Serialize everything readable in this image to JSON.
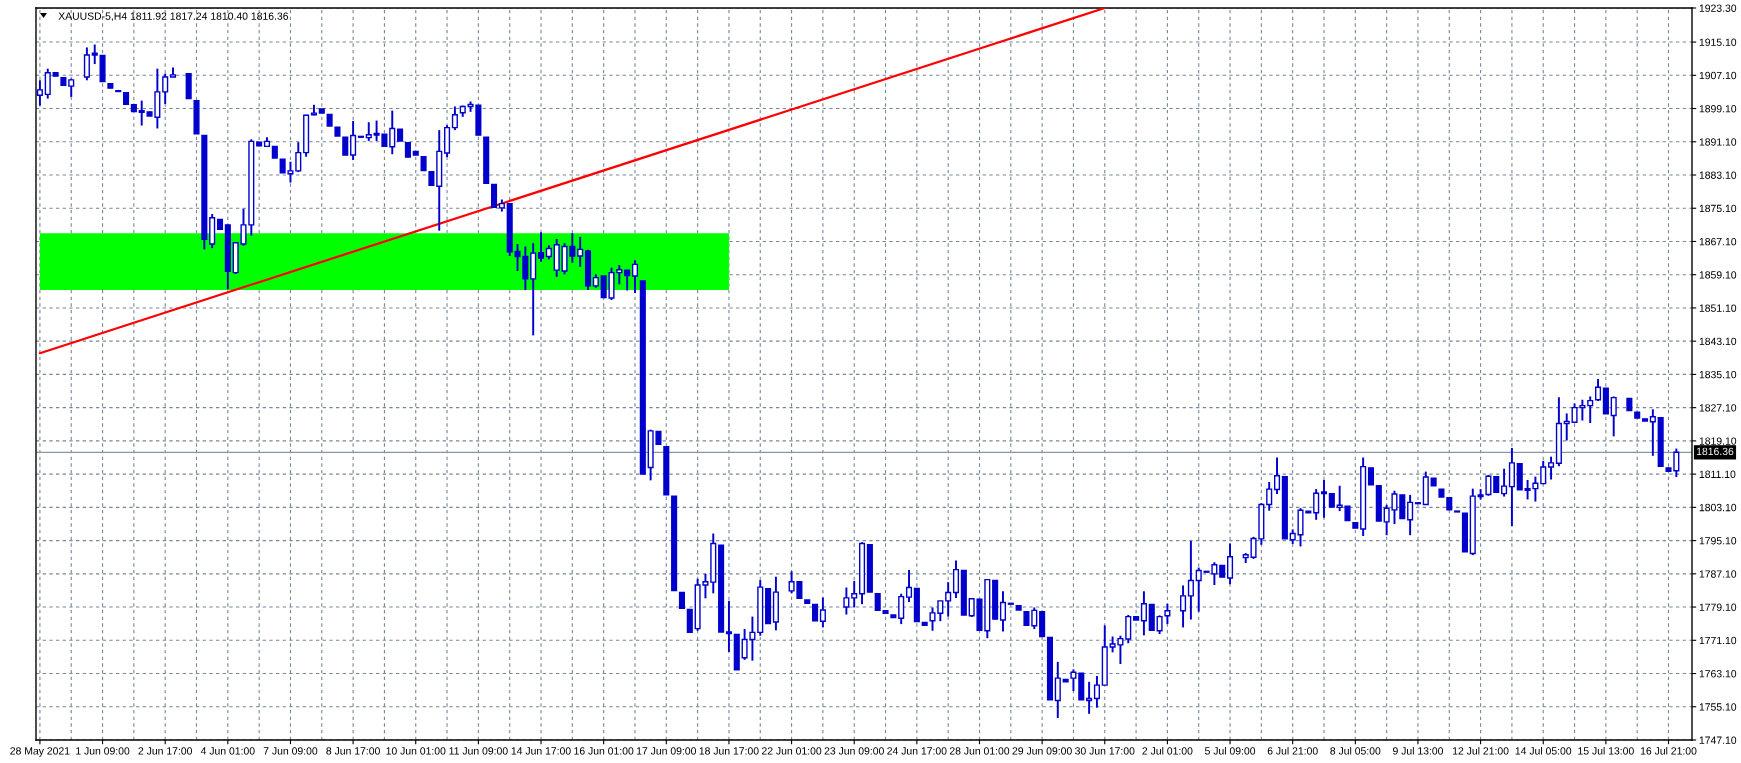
{
  "chart_data": {
    "type": "candlestick",
    "title": "XAUUSD-5,H4 1811.92 1817.24 1810.40 1816.36",
    "color": "#0000cd",
    "categories": [
      "28 May 2021",
      null,
      null,
      null,
      null,
      null,
      null,
      null,
      "1 Jun 09:00",
      null,
      null,
      null,
      null,
      null,
      null,
      null,
      "2 Jun 17:00",
      null,
      null,
      null,
      null,
      null,
      null,
      null,
      "4 Jun 01:00",
      null,
      null,
      null,
      null,
      null,
      null,
      null,
      "7 Jun 09:00",
      null,
      null,
      null,
      null,
      null,
      null,
      null,
      "8 Jun 17:00",
      null,
      null,
      null,
      null,
      null,
      null,
      null,
      "10 Jun 01:00",
      null,
      null,
      null,
      null,
      null,
      null,
      null,
      "11 Jun 09:00",
      null,
      null,
      null,
      null,
      null,
      null,
      null,
      "14 Jun 17:00",
      null,
      null,
      null,
      null,
      null,
      null,
      null,
      "16 Jun 01:00",
      null,
      null,
      null,
      null,
      null,
      null,
      null,
      "17 Jun 09:00",
      null,
      null,
      null,
      null,
      null,
      null,
      null,
      "18 Jun 17:00",
      null,
      null,
      null,
      null,
      null,
      null,
      null,
      "22 Jun 01:00",
      null,
      null,
      null,
      null,
      null,
      null,
      null,
      "23 Jun 09:00",
      null,
      null,
      null,
      null,
      null,
      null,
      null,
      "24 Jun 17:00",
      null,
      null,
      null,
      null,
      null,
      null,
      null,
      "28 Jun 01:00",
      null,
      null,
      null,
      null,
      null,
      null,
      null,
      "29 Jun 09:00",
      null,
      null,
      null,
      null,
      null,
      null,
      null,
      "30 Jun 17:00",
      null,
      null,
      null,
      null,
      null,
      null,
      null,
      "2 Jul 01:00",
      null,
      null,
      null,
      null,
      null,
      null,
      null,
      "5 Jul 09:00",
      null,
      null,
      null,
      null,
      null,
      null,
      null,
      "6 Jul 21:00",
      null,
      null,
      null,
      null,
      null,
      null,
      null,
      "8 Jul 05:00",
      null,
      null,
      null,
      null,
      null,
      null,
      null,
      "9 Jul 13:00",
      null,
      null,
      null,
      null,
      null,
      null,
      null,
      "12 Jul 21:00",
      null,
      null,
      null,
      null,
      null,
      null,
      null,
      "14 Jul 05:00",
      null,
      null,
      null,
      null,
      null,
      null,
      null,
      "15 Jul 13:00",
      null,
      null,
      null,
      null,
      null,
      null,
      null,
      "16 Jul 21:00",
      null
    ],
    "ohlc": [
      [
        1902.3,
        1905.9,
        1899.8,
        1903.6
      ],
      [
        1902.5,
        1908.7,
        1901.5,
        1907.7
      ],
      [
        1907.7,
        1907.7,
        1906.9,
        1906.9
      ],
      [
        1906.5,
        1906.5,
        1904.7,
        1904.7
      ],
      [
        1904.5,
        1906.3,
        1901.9,
        1906.0
      ],
      null,
      [
        1906.7,
        1913.8,
        1905.9,
        1912.0
      ],
      [
        1912.4,
        1914.5,
        1909.8,
        1912.0
      ],
      [
        1911.9,
        1911.9,
        1905.6,
        1905.6
      ],
      [
        1905.1,
        1905.1,
        1904.0,
        1904.0
      ],
      [
        1903.4,
        1903.4,
        1903.2,
        1903.2
      ],
      [
        1902.9,
        1902.9,
        1900.1,
        1900.1
      ],
      [
        1900.0,
        1900.0,
        1898.4,
        1898.4
      ],
      [
        1898.6,
        1901.0,
        1895.0,
        1898.2
      ],
      [
        1898.3,
        1898.3,
        1897.3,
        1897.3
      ],
      [
        1897.0,
        1908.7,
        1894.3,
        1903.1
      ],
      [
        1903.1,
        1907.5,
        1900.2,
        1906.7
      ],
      [
        1906.7,
        1909.0,
        1906.7,
        1907.2
      ],
      null,
      [
        1907.5,
        1907.5,
        1901.5,
        1901.5
      ],
      [
        1901.0,
        1901.0,
        1893.0,
        1893.0
      ],
      [
        1892.6,
        1892.6,
        1865.2,
        1867.6
      ],
      [
        1866.5,
        1873.7,
        1865.5,
        1872.8
      ],
      [
        1872.4,
        1872.4,
        1870.0,
        1870.0
      ],
      [
        1871.1,
        1871.1,
        1855.6,
        1859.9
      ],
      [
        1859.6,
        1866.8,
        1859.3,
        1866.8
      ],
      [
        1866.5,
        1875.0,
        1866.1,
        1871.1
      ],
      [
        1871.1,
        1891.7,
        1868.5,
        1891.2
      ],
      [
        1891.0,
        1891.0,
        1890.1,
        1890.1
      ],
      [
        1890.0,
        1892.2,
        1890.0,
        1891.2
      ],
      [
        1890.0,
        1890.0,
        1887.2,
        1887.2
      ],
      [
        1886.9,
        1886.9,
        1883.6,
        1883.6
      ],
      [
        1883.4,
        1886.3,
        1881.3,
        1884.1
      ],
      [
        1884.1,
        1891.0,
        1883.8,
        1888.5
      ],
      [
        1888.5,
        1897.6,
        1887.5,
        1897.5
      ],
      [
        1897.6,
        1900.0,
        1897.5,
        1898.0
      ],
      [
        1899.0,
        1899.0,
        1898.0,
        1898.0
      ],
      [
        1897.7,
        1897.7,
        1894.9,
        1894.9
      ],
      [
        1894.6,
        1894.6,
        1892.5,
        1892.5
      ],
      [
        1892.2,
        1892.2,
        1887.9,
        1887.9
      ],
      [
        1887.9,
        1896.1,
        1886.7,
        1892.6
      ],
      [
        1892.4,
        1892.4,
        1892.2,
        1892.2
      ],
      [
        1892.1,
        1895.8,
        1891.3,
        1892.8
      ],
      [
        1893.1,
        1896.2,
        1891.3,
        1892.7
      ],
      [
        1892.9,
        1892.9,
        1890.0,
        1890.0
      ],
      [
        1889.9,
        1898.6,
        1888.1,
        1894.3
      ],
      [
        1894.1,
        1894.1,
        1891.3,
        1891.3
      ],
      [
        1890.9,
        1890.9,
        1887.4,
        1887.4
      ],
      [
        1888.8,
        1888.8,
        1887.9,
        1887.9
      ],
      [
        1887.5,
        1887.5,
        1884.2,
        1884.2
      ],
      [
        1883.9,
        1883.9,
        1880.6,
        1880.6
      ],
      [
        1880.4,
        1893.9,
        1869.7,
        1888.8
      ],
      [
        1888.4,
        1895.1,
        1887.4,
        1894.5
      ],
      [
        1894.5,
        1899.6,
        1893.9,
        1897.6
      ],
      [
        1898.1,
        1899.8,
        1897.1,
        1899.6
      ],
      [
        1899.6,
        1900.8,
        1898.3,
        1900.1
      ],
      [
        1899.9,
        1899.9,
        1892.7,
        1892.7
      ],
      [
        1892.2,
        1892.2,
        1881.1,
        1881.1
      ],
      [
        1880.8,
        1880.8,
        1875.3,
        1875.3
      ],
      [
        1875.2,
        1877.2,
        1874.3,
        1876.2
      ],
      [
        1876.2,
        1876.2,
        1863.6,
        1864.6
      ],
      [
        1864.7,
        1866.5,
        1860.0,
        1863.5
      ],
      [
        1863.5,
        1865.9,
        1855.4,
        1858.1
      ],
      [
        1858.1,
        1866.7,
        1844.5,
        1864.3
      ],
      [
        1864.4,
        1869.3,
        1862.2,
        1863.1
      ],
      [
        1863.5,
        1866.2,
        1862.8,
        1865.4
      ],
      [
        1860.2,
        1867.7,
        1858.6,
        1866.3
      ],
      [
        1860.0,
        1866.7,
        1859.2,
        1865.9
      ],
      [
        1865.9,
        1869.1,
        1862.0,
        1863.6
      ],
      [
        1863.6,
        1868.2,
        1861.0,
        1865.2
      ],
      [
        1864.8,
        1865.1,
        1855.4,
        1856.4
      ],
      [
        1856.4,
        1859.2,
        1856.0,
        1858.4
      ],
      [
        1858.8,
        1858.8,
        1853.6,
        1853.6
      ],
      [
        1853.5,
        1860.8,
        1853.0,
        1859.6
      ],
      [
        1859.6,
        1861.4,
        1856.8,
        1860.3
      ],
      [
        1860.2,
        1860.2,
        1855.3,
        1858.9
      ],
      [
        1858.8,
        1862.6,
        1854.7,
        1861.6
      ],
      [
        1857.6,
        1857.6,
        1811.1,
        1811.1
      ],
      [
        1812.7,
        1821.8,
        1809.6,
        1821.5
      ],
      [
        1821.4,
        1821.4,
        1818.3,
        1818.3
      ],
      [
        1817.7,
        1817.7,
        1806.1,
        1806.1
      ],
      [
        1805.8,
        1805.8,
        1783.1,
        1783.1
      ],
      [
        1782.6,
        1782.6,
        1778.8,
        1778.8
      ],
      [
        1778.5,
        1778.5,
        1773.0,
        1773.0
      ],
      [
        1773.9,
        1785.9,
        1773.4,
        1784.4
      ],
      [
        1784.4,
        1787.1,
        1781.2,
        1785.2
      ],
      [
        1785.1,
        1796.8,
        1782.4,
        1794.4
      ],
      [
        1794.0,
        1794.0,
        1773.1,
        1773.1
      ],
      [
        1773.1,
        1780.6,
        1768.3,
        1772.7
      ],
      [
        1772.5,
        1772.5,
        1764.0,
        1764.0
      ],
      [
        1766.9,
        1773.8,
        1766.4,
        1771.3
      ],
      [
        1771.3,
        1776.8,
        1766.2,
        1773.0
      ],
      [
        1773.0,
        1785.6,
        1772.2,
        1783.9
      ],
      [
        1783.5,
        1783.5,
        1775.1,
        1775.1
      ],
      [
        1775.5,
        1786.4,
        1773.5,
        1782.7
      ],
      null,
      [
        1783.0,
        1787.7,
        1782.4,
        1785.2
      ],
      [
        1785.2,
        1785.2,
        1781.2,
        1781.2
      ],
      [
        1780.8,
        1780.8,
        1780.0,
        1780.0
      ],
      [
        1779.7,
        1779.7,
        1775.8,
        1775.8
      ],
      [
        1775.7,
        1781.4,
        1774.2,
        1778.4
      ],
      null,
      null,
      [
        1779.1,
        1783.8,
        1777.3,
        1781.3
      ],
      [
        1781.3,
        1785.4,
        1779.0,
        1782.3
      ],
      [
        1782.3,
        1794.7,
        1779.8,
        1794.4
      ],
      [
        1794.1,
        1794.1,
        1782.7,
        1782.7
      ],
      [
        1782.3,
        1782.3,
        1778.3,
        1778.3
      ],
      [
        1778.2,
        1778.2,
        1777.6,
        1777.6
      ],
      [
        1777.2,
        1777.2,
        1776.6,
        1776.6
      ],
      [
        1776.4,
        1782.3,
        1775.0,
        1781.6
      ],
      [
        1781.5,
        1788.0,
        1780.3,
        1783.8
      ],
      [
        1783.6,
        1783.6,
        1775.6,
        1775.6
      ],
      [
        1775.4,
        1775.4,
        1774.7,
        1774.7
      ],
      [
        1775.8,
        1779.0,
        1773.4,
        1777.7
      ],
      [
        1777.6,
        1780.6,
        1775.7,
        1780.6
      ],
      [
        1780.6,
        1785.1,
        1776.8,
        1782.6
      ],
      [
        1782.6,
        1790.3,
        1781.3,
        1788.1
      ],
      [
        1787.9,
        1787.9,
        1777.2,
        1777.2
      ],
      [
        1777.0,
        1781.1,
        1776.7,
        1781.1
      ],
      [
        1781.0,
        1781.0,
        1773.5,
        1773.5
      ],
      [
        1773.4,
        1785.7,
        1771.6,
        1785.7
      ],
      [
        1785.5,
        1785.5,
        1776.2,
        1776.2
      ],
      [
        1776.0,
        1782.9,
        1773.2,
        1780.2
      ],
      [
        1780.0,
        1780.0,
        1779.8,
        1779.8
      ],
      [
        1779.4,
        1779.4,
        1778.4,
        1778.4
      ],
      [
        1778.0,
        1778.0,
        1774.7,
        1774.7
      ],
      [
        1774.6,
        1779.0,
        1773.8,
        1778.3
      ],
      [
        1778.0,
        1778.0,
        1772.0,
        1772.0
      ],
      [
        1771.8,
        1771.8,
        1756.8,
        1756.8
      ],
      [
        1756.6,
        1765.9,
        1752.4,
        1762.0
      ],
      [
        1761.7,
        1761.7,
        1761.1,
        1761.1
      ],
      [
        1762.0,
        1764.1,
        1758.9,
        1763.4
      ],
      [
        1763.2,
        1763.2,
        1756.8,
        1756.8
      ],
      [
        1756.6,
        1761.1,
        1753.4,
        1757.1
      ],
      [
        1757.1,
        1762.5,
        1754.9,
        1760.3
      ],
      [
        1760.3,
        1774.7,
        1760.3,
        1769.5
      ],
      [
        1769.5,
        1772.0,
        1768.2,
        1770.2
      ],
      [
        1770.0,
        1772.2,
        1765.4,
        1771.5
      ],
      [
        1771.4,
        1777.2,
        1770.4,
        1776.8
      ],
      [
        1776.8,
        1776.8,
        1776.0,
        1776.0
      ],
      [
        1775.8,
        1782.9,
        1772.3,
        1779.9
      ],
      [
        1779.7,
        1779.7,
        1773.5,
        1773.5
      ],
      [
        1773.4,
        1777.1,
        1772.6,
        1776.8
      ],
      [
        1777.0,
        1779.9,
        1775.0,
        1778.2
      ],
      null,
      [
        1778.2,
        1784.3,
        1774.2,
        1781.8
      ],
      [
        1781.8,
        1795.0,
        1776.1,
        1785.5
      ],
      [
        1785.5,
        1788.6,
        1778.0,
        1787.9
      ],
      [
        1787.7,
        1787.7,
        1787.5,
        1787.5
      ],
      [
        1787.1,
        1789.9,
        1784.4,
        1789.3
      ],
      [
        1789.1,
        1789.1,
        1786.3,
        1786.3
      ],
      [
        1786.1,
        1794.4,
        1784.6,
        1791.2
      ],
      null,
      [
        1791.0,
        1792.1,
        1789.7,
        1791.7
      ],
      [
        1791.1,
        1796.0,
        1790.7,
        1795.6
      ],
      [
        1795.5,
        1804.1,
        1794.1,
        1803.8
      ],
      [
        1803.8,
        1809.2,
        1802.3,
        1807.5
      ],
      [
        1807.4,
        1815.1,
        1806.3,
        1810.7
      ],
      [
        1810.5,
        1810.5,
        1795.5,
        1795.5
      ],
      [
        1795.3,
        1797.8,
        1794.3,
        1796.8
      ],
      [
        1796.5,
        1802.9,
        1793.7,
        1802.4
      ],
      [
        1802.2,
        1802.2,
        1801.8,
        1801.8
      ],
      [
        1801.8,
        1807.5,
        1800.1,
        1806.5
      ],
      [
        1806.8,
        1809.7,
        1800.6,
        1806.4
      ],
      [
        1806.4,
        1806.4,
        1803.2,
        1803.2
      ],
      [
        1803.1,
        1808.3,
        1802.2,
        1803.6
      ],
      [
        1803.4,
        1803.4,
        1799.9,
        1799.9
      ],
      [
        1799.4,
        1799.4,
        1798.1,
        1798.1
      ],
      [
        1797.9,
        1815.1,
        1796.2,
        1812.9
      ],
      [
        1812.6,
        1812.6,
        1808.5,
        1808.5
      ],
      [
        1808.3,
        1808.3,
        1799.8,
        1799.8
      ],
      [
        1799.6,
        1803.7,
        1796.4,
        1802.9
      ],
      [
        1802.5,
        1807.1,
        1799.1,
        1806.3
      ],
      [
        1806.1,
        1806.1,
        1800.4,
        1800.4
      ],
      [
        1800.1,
        1806.1,
        1796.4,
        1804.3
      ],
      [
        1804.2,
        1804.2,
        1804.0,
        1804.0
      ],
      [
        1803.8,
        1811.7,
        1803.7,
        1810.4
      ],
      [
        1810.1,
        1810.1,
        1808.3,
        1808.3
      ],
      [
        1807.5,
        1807.5,
        1805.6,
        1805.6
      ],
      [
        1805.4,
        1805.4,
        1802.5,
        1802.5
      ],
      [
        1802.2,
        1802.2,
        1802.0,
        1802.0
      ],
      [
        1801.7,
        1801.7,
        1792.4,
        1792.4
      ],
      [
        1792.0,
        1807.6,
        1791.6,
        1805.8
      ],
      [
        1806.1,
        1807.5,
        1805.0,
        1805.7
      ],
      [
        1806.2,
        1810.9,
        1805.9,
        1810.6
      ],
      [
        1810.5,
        1810.5,
        1806.7,
        1806.7
      ],
      [
        1806.4,
        1812.4,
        1805.7,
        1808.2
      ],
      [
        1808.1,
        1817.4,
        1798.6,
        1813.8
      ],
      [
        1813.6,
        1813.6,
        1807.3,
        1807.3
      ],
      [
        1807.6,
        1809.7,
        1805.0,
        1807.2
      ],
      [
        1807.6,
        1810.5,
        1804.5,
        1808.9
      ],
      [
        1808.8,
        1814.3,
        1808.7,
        1812.8
      ],
      [
        1812.8,
        1815.3,
        1809.8,
        1813.8
      ],
      [
        1813.7,
        1829.6,
        1813.0,
        1823.3
      ],
      [
        1823.3,
        1825.7,
        1819.2,
        1823.8
      ],
      [
        1823.6,
        1828.1,
        1823.6,
        1827.1
      ],
      [
        1827.1,
        1829.0,
        1824.0,
        1827.6
      ],
      [
        1827.6,
        1829.8,
        1823.4,
        1828.8
      ],
      [
        1829.0,
        1834.0,
        1828.7,
        1832.0
      ],
      [
        1831.8,
        1831.8,
        1825.6,
        1825.6
      ],
      [
        1825.2,
        1829.8,
        1820.2,
        1829.5
      ],
      null,
      [
        1829.3,
        1829.3,
        1826.4,
        1826.4
      ],
      [
        1826.0,
        1826.0,
        1824.6,
        1824.6
      ],
      [
        1824.4,
        1824.4,
        1823.9,
        1823.9
      ],
      [
        1823.7,
        1826.7,
        1815.5,
        1824.9
      ],
      [
        1824.7,
        1824.7,
        1813.0,
        1813.0
      ],
      [
        1812.6,
        1812.6,
        1811.8,
        1811.8
      ],
      [
        1811.92,
        1817.24,
        1810.4,
        1816.36
      ]
    ],
    "series": [
      {
        "type": "line",
        "x": [
          "28 May 2021",
          "18 Jun 17:00"
        ],
        "values": [
          null,
          null
        ],
        "lower": [
          1855.4,
          1855.4
        ],
        "upper": [
          1869.1,
          1869.1
        ],
        "color": "#00ff00"
      },
      {
        "type": "line",
        "x": [
          "28 May 2021",
          "30 Jun 17:00"
        ],
        "values": [
          1840.2,
          1923.3
        ],
        "color": "#ff0000"
      }
    ],
    "ylim": [
      1747.1,
      1923.3
    ],
    "yticks": [
      {
        "value": 1747.1,
        "label": "1747.10"
      },
      {
        "value": 1755.1,
        "label": "1755.10"
      },
      {
        "value": 1763.1,
        "label": "1763.10"
      },
      {
        "value": 1771.1,
        "label": "1771.10"
      },
      {
        "value": 1779.1,
        "label": "1779.10"
      },
      {
        "value": 1787.1,
        "label": "1787.10"
      },
      {
        "value": 1795.1,
        "label": "1795.10"
      },
      {
        "value": 1803.1,
        "label": "1803.10"
      },
      {
        "value": 1811.1,
        "label": "1811.10"
      },
      {
        "value": 1819.1,
        "label": "1819.10"
      },
      {
        "value": 1827.1,
        "label": "1827.10"
      },
      {
        "value": 1835.1,
        "label": "1835.10"
      },
      {
        "value": 1843.1,
        "label": "1843.10"
      },
      {
        "value": 1851.1,
        "label": "1851.10"
      },
      {
        "value": 1859.1,
        "label": "1859.10"
      },
      {
        "value": 1867.1,
        "label": "1867.10"
      },
      {
        "value": 1875.1,
        "label": "1875.10"
      },
      {
        "value": 1883.1,
        "label": "1883.10"
      },
      {
        "value": 1891.1,
        "label": "1891.10"
      },
      {
        "value": 1899.1,
        "label": "1899.10"
      },
      {
        "value": 1907.1,
        "label": "1907.10"
      },
      {
        "value": 1915.1,
        "label": "1915.10"
      },
      {
        "value": 1923.3,
        "label": "1923.30"
      }
    ],
    "grid": true,
    "ref_lines": [
      {
        "axis": "y",
        "value": 1816.36,
        "label": "1816.36",
        "color": "#8a96a3"
      }
    ]
  }
}
